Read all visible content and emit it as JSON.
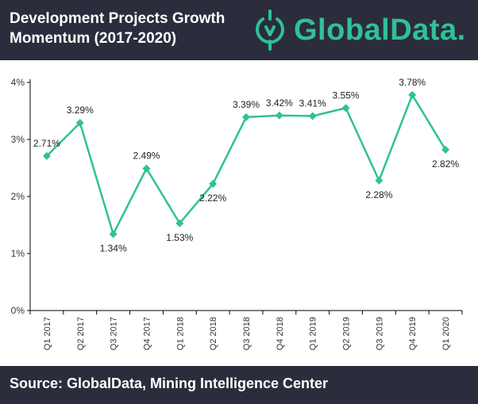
{
  "header": {
    "title_line1": "Development Projects Growth",
    "title_line2": "Momentum (2017-2020)",
    "brand": "GlobalData",
    "brand_dot": ".",
    "brand_color": "#2fc197"
  },
  "footer": {
    "source": "Source: GlobalData, Mining Intelligence Center"
  },
  "chart_data": {
    "type": "line",
    "categories": [
      "Q1 2017",
      "Q2 2017",
      "Q3 2017",
      "Q4 2017",
      "Q1 2018",
      "Q2 2018",
      "Q3 2018",
      "Q4 2018",
      "Q1 2019",
      "Q2 2019",
      "Q3 2019",
      "Q4 2019",
      "Q1 2020"
    ],
    "values": [
      2.71,
      3.29,
      1.34,
      2.49,
      1.53,
      2.22,
      3.39,
      3.42,
      3.41,
      3.55,
      2.28,
      3.78,
      2.82
    ],
    "value_labels": [
      "2.71%",
      "3.29%",
      "1.34%",
      "2.49%",
      "1.53%",
      "2.22%",
      "3.39%",
      "3.42%",
      "3.41%",
      "3.55%",
      "2.28%",
      "3.78%",
      "2.82%"
    ],
    "label_positions": [
      "above",
      "above",
      "below",
      "above",
      "below",
      "below",
      "above",
      "above",
      "above",
      "above",
      "below",
      "above",
      "below"
    ],
    "ylim": [
      0,
      4
    ],
    "yticks": [
      0,
      1,
      2,
      3,
      4
    ],
    "ytick_labels": [
      "0%",
      "1%",
      "2%",
      "3%",
      "4%"
    ],
    "title": "",
    "xlabel": "",
    "ylabel": "",
    "grid": false,
    "line_color": "#2fc197",
    "marker": "diamond"
  }
}
